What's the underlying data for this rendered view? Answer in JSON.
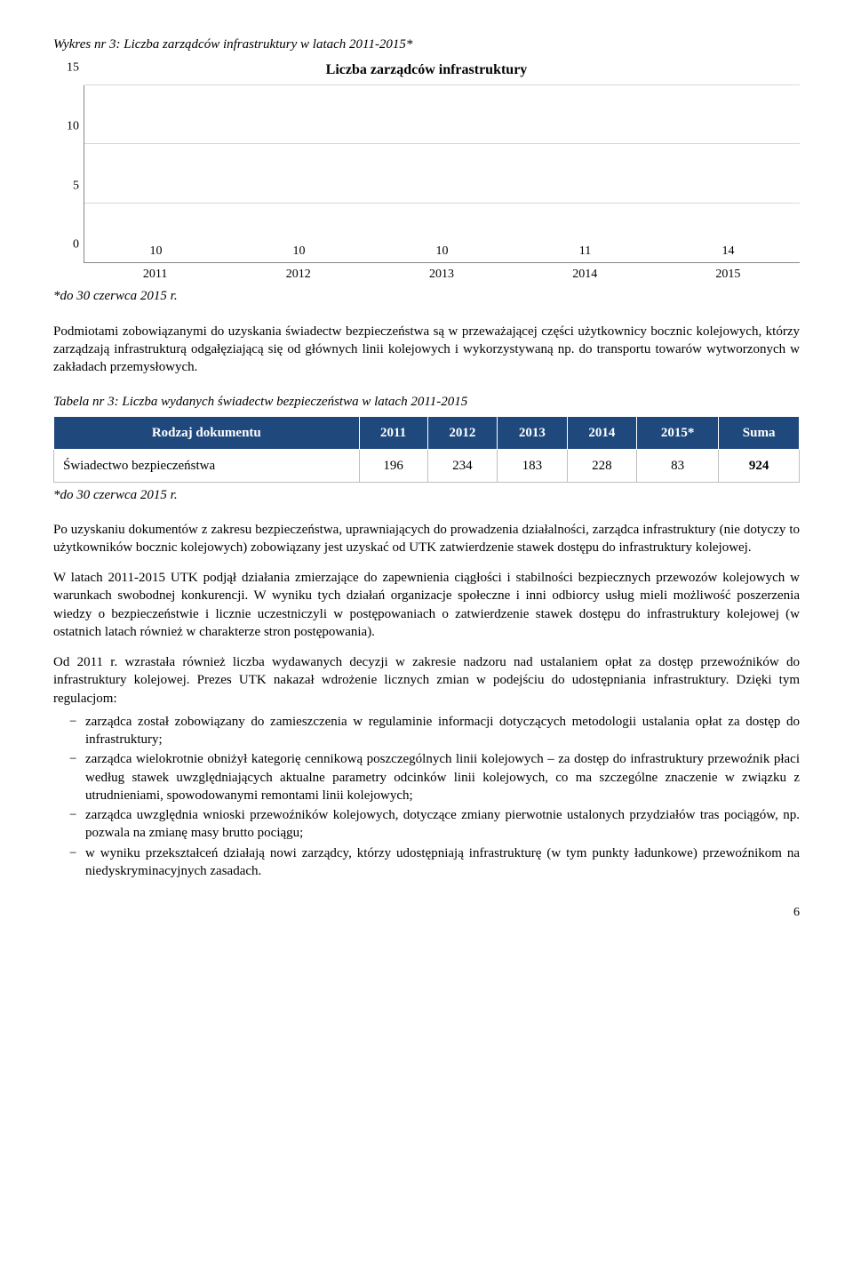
{
  "chart": {
    "caption": "Wykres nr 3: Liczba zarządców infrastruktury w latach 2011-2015*",
    "title": "Liczba zarządców infrastruktury",
    "type": "bar",
    "categories": [
      "2011",
      "2012",
      "2013",
      "2014",
      "2015"
    ],
    "values": [
      10,
      10,
      10,
      11,
      14
    ],
    "value_labels": [
      "10",
      "10",
      "10",
      "11",
      "14"
    ],
    "bar_color": "#4f81bd",
    "ylim_max": 15,
    "ytick_step": 5,
    "yticks": [
      "0",
      "5",
      "10",
      "15"
    ],
    "grid_color": "#d9d9d9",
    "axis_color": "#868686",
    "label_fontsize": 14,
    "footnote": "*do 30 czerwca 2015 r."
  },
  "para1": "Podmiotami zobowiązanymi do uzyskania świadectw bezpieczeństwa są w przeważającej części użytkownicy bocznic kolejowych, którzy zarządzają infrastrukturą odgałęziającą się od głównych linii kolejowych i wykorzystywaną np. do transportu towarów wytworzonych w zakładach przemysłowych.",
  "table": {
    "caption": "Tabela nr 3: Liczba wydanych świadectw bezpieczeństwa w latach 2011-2015",
    "columns": [
      "Rodzaj dokumentu",
      "2011",
      "2012",
      "2013",
      "2014",
      "2015*",
      "Suma"
    ],
    "row_label": "Świadectwo bezpieczeństwa",
    "row_values": [
      "196",
      "234",
      "183",
      "228",
      "83",
      "924"
    ],
    "footnote": "*do 30 czerwca 2015 r.",
    "header_bg": "#1f497d",
    "header_color": "#ffffff"
  },
  "para2": "Po uzyskaniu dokumentów z zakresu bezpieczeństwa, uprawniających do prowadzenia działalności, zarządca infrastruktury (nie dotyczy to użytkowników bocznic kolejowych) zobowiązany jest uzyskać od UTK zatwierdzenie stawek dostępu do infrastruktury kolejowej.",
  "para3": "W latach 2011-2015 UTK podjął działania zmierzające do zapewnienia ciągłości i stabilności bezpiecznych przewozów kolejowych w warunkach swobodnej konkurencji. W wyniku tych działań organizacje społeczne i inni odbiorcy usług mieli możliwość poszerzenia wiedzy o bezpieczeństwie i licznie uczestniczyli w postępowaniach o zatwierdzenie stawek dostępu do infrastruktury kolejowej (w ostatnich latach również w charakterze stron postępowania).",
  "para4": "Od 2011 r. wzrastała również liczba wydawanych decyzji w zakresie nadzoru nad ustalaniem opłat za dostęp przewoźników do infrastruktury kolejowej. Prezes UTK nakazał wdrożenie licznych zmian w podejściu do udostępniania infrastruktury. Dzięki tym regulacjom:",
  "bullets": [
    "zarządca został zobowiązany do zamieszczenia w regulaminie informacji dotyczących metodologii ustalania opłat za dostęp do infrastruktury;",
    "zarządca wielokrotnie obniżył kategorię cennikową poszczególnych linii kolejowych – za dostęp do infrastruktury przewoźnik płaci według stawek uwzględniających aktualne parametry odcinków linii kolejowych, co ma szczególne znaczenie w związku z utrudnieniami, spowodowanymi remontami linii kolejowych;",
    "zarządca uwzględnia wnioski przewoźników kolejowych, dotyczące zmiany pierwotnie ustalonych przydziałów tras pociągów, np. pozwala na zmianę masy brutto pociągu;",
    "w wyniku przekształceń działają nowi zarządcy, którzy udostępniają infrastrukturę (w tym punkty ładunkowe) przewoźnikom na niedyskryminacyjnych zasadach."
  ],
  "page_number": "6"
}
